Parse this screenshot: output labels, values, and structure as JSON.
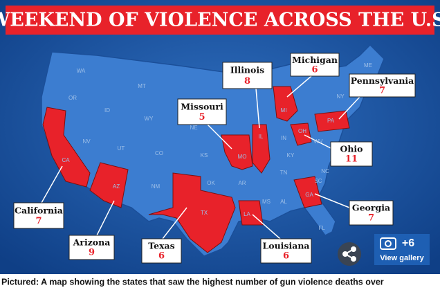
{
  "header": {
    "title": "WEEKEND OF VIOLENCE ACROSS THE U.S."
  },
  "callouts": [
    {
      "state": "Illinois",
      "count": 8
    },
    {
      "state": "Michigan",
      "count": 6
    },
    {
      "state": "Pennsylvania",
      "count": 7
    },
    {
      "state": "Missouri",
      "count": 5
    },
    {
      "state": "Ohio",
      "count": 11
    },
    {
      "state": "California",
      "count": 7
    },
    {
      "state": "Arizona",
      "count": 9
    },
    {
      "state": "Texas",
      "count": 6
    },
    {
      "state": "Louisiana",
      "count": 6
    },
    {
      "state": "Georgia",
      "count": 7
    }
  ],
  "state_labels": [
    "WA",
    "MT",
    "OR",
    "ID",
    "WY",
    "NV",
    "UT",
    "CO",
    "CA",
    "AZ",
    "NM",
    "TX",
    "OK",
    "KS",
    "NE",
    "MO",
    "IL",
    "AR",
    "LA",
    "MS",
    "AL",
    "GA",
    "FL",
    "SC",
    "NC",
    "TN",
    "KY",
    "IN",
    "OH",
    "MI",
    "WV",
    "PA",
    "NY",
    "ME"
  ],
  "gallery": {
    "count": "+6",
    "label": "View gallery"
  },
  "caption": "Pictured: A map showing the states that saw the highest number of gun violence deaths over"
}
